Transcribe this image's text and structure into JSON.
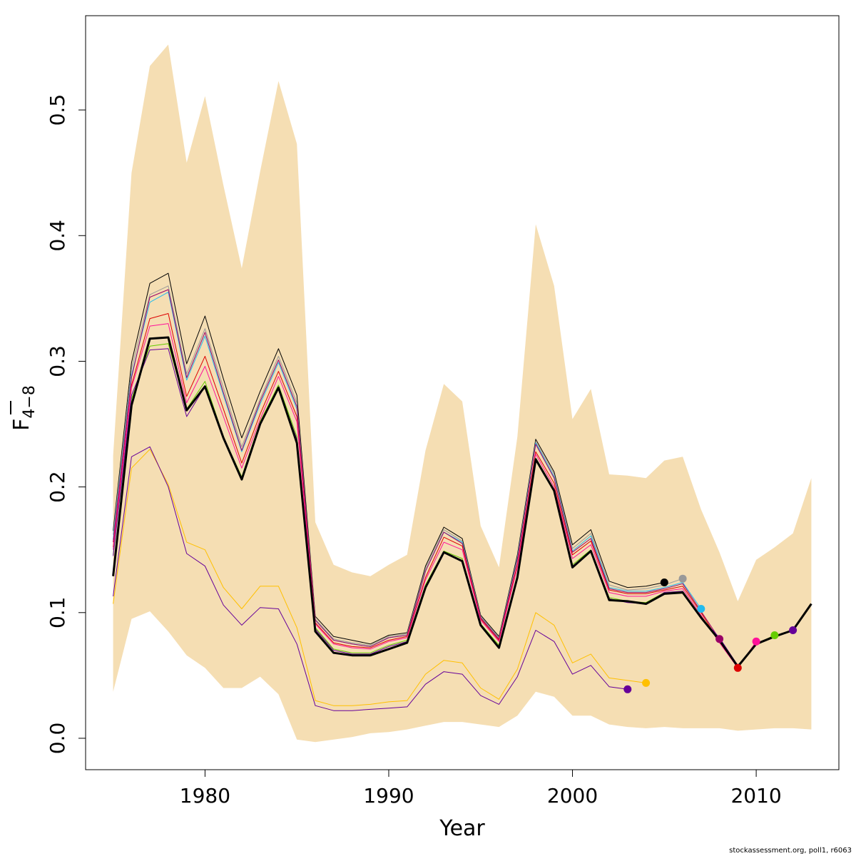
{
  "chart_data": {
    "type": "line",
    "xlabel": "Year",
    "ylabel_main": "F",
    "ylabel_sub": "4−8",
    "xlim": [
      1973.5,
      2014.5
    ],
    "ylim": [
      -0.025,
      0.575
    ],
    "xticks": [
      1980,
      1990,
      2000,
      2010
    ],
    "yticks": [
      0.0,
      0.1,
      0.2,
      0.3,
      0.4,
      0.5
    ],
    "ytick_labels": [
      "0.0",
      "0.1",
      "0.2",
      "0.3",
      "0.4",
      "0.5"
    ],
    "band_color": "#f5deb3",
    "band_x": [
      1975,
      1976,
      1977,
      1978,
      1979,
      1980,
      1981,
      1982,
      1983,
      1984,
      1985,
      1986,
      1987,
      1988,
      1989,
      1990,
      1991,
      1992,
      1993,
      1994,
      1995,
      1996,
      1997,
      1998,
      1999,
      2000,
      2001,
      2002,
      2003,
      2004,
      2005,
      2006,
      2007,
      2008,
      2009,
      2010,
      2011,
      2012,
      2013
    ],
    "band_upper": [
      0.225,
      0.45,
      0.535,
      0.552,
      0.458,
      0.511,
      0.44,
      0.374,
      0.451,
      0.523,
      0.473,
      0.172,
      0.138,
      0.132,
      0.129,
      0.138,
      0.146,
      0.229,
      0.282,
      0.268,
      0.169,
      0.136,
      0.24,
      0.409,
      0.36,
      0.254,
      0.278,
      0.21,
      0.209,
      0.207,
      0.221,
      0.224,
      0.182,
      0.148,
      0.109,
      0.142,
      0.152,
      0.163,
      0.207
    ],
    "band_lower": [
      0.037,
      0.095,
      0.101,
      0.085,
      0.066,
      0.056,
      0.04,
      0.04,
      0.049,
      0.035,
      -0.001,
      -0.003,
      -0.001,
      0.001,
      0.004,
      0.005,
      0.007,
      0.01,
      0.013,
      0.013,
      0.011,
      0.009,
      0.018,
      0.037,
      0.033,
      0.018,
      0.018,
      0.011,
      0.009,
      0.008,
      0.009,
      0.008,
      0.008,
      0.008,
      0.006,
      0.007,
      0.008,
      0.008,
      0.007
    ],
    "series": [
      {
        "color": "#000000",
        "width": 1,
        "end_dot": true,
        "x": [
          1975,
          1976,
          1977,
          1978,
          1979,
          1980,
          1981,
          1982,
          1983,
          1984,
          1985,
          1986,
          1987,
          1988,
          1989,
          1990,
          1991,
          1992,
          1993,
          1994,
          1995,
          1996,
          1997,
          1998,
          1999,
          2000,
          2001,
          2002,
          2003,
          2004,
          2005
        ],
        "y": [
          0.165,
          0.299,
          0.362,
          0.37,
          0.298,
          0.336,
          0.286,
          0.239,
          0.276,
          0.31,
          0.273,
          0.097,
          0.081,
          0.078,
          0.075,
          0.082,
          0.084,
          0.137,
          0.168,
          0.159,
          0.098,
          0.081,
          0.146,
          0.238,
          0.212,
          0.154,
          0.166,
          0.125,
          0.12,
          0.121,
          0.124
        ]
      },
      {
        "color": "#999999",
        "width": 1,
        "end_dot": true,
        "x": [
          1975,
          1976,
          1977,
          1978,
          1979,
          1980,
          1981,
          1982,
          1983,
          1984,
          1985,
          1986,
          1987,
          1988,
          1989,
          1990,
          1991,
          1992,
          1993,
          1994,
          1995,
          1996,
          1997,
          1998,
          1999,
          2000,
          2001,
          2002,
          2003,
          2004,
          2005,
          2006
        ],
        "y": [
          0.162,
          0.294,
          0.353,
          0.36,
          0.29,
          0.326,
          0.279,
          0.232,
          0.27,
          0.304,
          0.267,
          0.095,
          0.079,
          0.076,
          0.074,
          0.081,
          0.083,
          0.135,
          0.166,
          0.157,
          0.097,
          0.08,
          0.144,
          0.236,
          0.21,
          0.151,
          0.163,
          0.122,
          0.118,
          0.119,
          0.122,
          0.127
        ]
      },
      {
        "color": "#22bbee",
        "width": 1,
        "end_dot": true,
        "x": [
          1975,
          1976,
          1977,
          1978,
          1979,
          1980,
          1981,
          1982,
          1983,
          1984,
          1985,
          1986,
          1987,
          1988,
          1989,
          1990,
          1991,
          1992,
          1993,
          1994,
          1995,
          1996,
          1997,
          1998,
          1999,
          2000,
          2001,
          2002,
          2003,
          2004,
          2005,
          2006,
          2007
        ],
        "y": [
          0.158,
          0.289,
          0.347,
          0.355,
          0.285,
          0.32,
          0.273,
          0.228,
          0.266,
          0.299,
          0.262,
          0.094,
          0.078,
          0.075,
          0.073,
          0.08,
          0.082,
          0.133,
          0.164,
          0.156,
          0.096,
          0.079,
          0.143,
          0.235,
          0.208,
          0.149,
          0.161,
          0.12,
          0.117,
          0.117,
          0.12,
          0.124,
          0.103
        ]
      },
      {
        "color": "#990066",
        "width": 1,
        "end_dot": true,
        "x": [
          1975,
          1976,
          1977,
          1978,
          1979,
          1980,
          1981,
          1982,
          1983,
          1984,
          1985,
          1986,
          1987,
          1988,
          1989,
          1990,
          1991,
          1992,
          1993,
          1994,
          1995,
          1996,
          1997,
          1998,
          1999,
          2000,
          2001,
          2002,
          2003,
          2004,
          2005,
          2006,
          2007,
          2008
        ],
        "y": [
          0.156,
          0.287,
          0.351,
          0.357,
          0.287,
          0.323,
          0.275,
          0.229,
          0.268,
          0.301,
          0.264,
          0.094,
          0.078,
          0.075,
          0.073,
          0.08,
          0.082,
          0.133,
          0.164,
          0.155,
          0.096,
          0.079,
          0.142,
          0.234,
          0.207,
          0.148,
          0.159,
          0.119,
          0.116,
          0.116,
          0.119,
          0.123,
          0.101,
          0.079
        ]
      },
      {
        "color": "#dd0000",
        "width": 1,
        "end_dot": true,
        "x": [
          1975,
          1976,
          1977,
          1978,
          1979,
          1980,
          1981,
          1982,
          1983,
          1984,
          1985,
          1986,
          1987,
          1988,
          1989,
          1990,
          1991,
          1992,
          1993,
          1994,
          1995,
          1996,
          1997,
          1998,
          1999,
          2000,
          2001,
          2002,
          2003,
          2004,
          2005,
          2006,
          2007,
          2008,
          2009
        ],
        "y": [
          0.152,
          0.281,
          0.334,
          0.338,
          0.272,
          0.304,
          0.262,
          0.219,
          0.258,
          0.292,
          0.256,
          0.092,
          0.076,
          0.073,
          0.072,
          0.078,
          0.081,
          0.128,
          0.16,
          0.153,
          0.095,
          0.078,
          0.138,
          0.228,
          0.203,
          0.146,
          0.157,
          0.118,
          0.115,
          0.115,
          0.118,
          0.121,
          0.1,
          0.077,
          0.056
        ]
      },
      {
        "color": "#ff1199",
        "width": 1,
        "end_dot": true,
        "x": [
          1975,
          1976,
          1977,
          1978,
          1979,
          1980,
          1981,
          1982,
          1983,
          1984,
          1985,
          1986,
          1987,
          1988,
          1989,
          1990,
          1991,
          1992,
          1993,
          1994,
          1995,
          1996,
          1997,
          1998,
          1999,
          2000,
          2001,
          2002,
          2003,
          2004,
          2005,
          2006,
          2007,
          2008,
          2009,
          2010
        ],
        "y": [
          0.15,
          0.279,
          0.328,
          0.33,
          0.267,
          0.296,
          0.256,
          0.215,
          0.254,
          0.288,
          0.252,
          0.091,
          0.075,
          0.072,
          0.071,
          0.077,
          0.08,
          0.126,
          0.156,
          0.15,
          0.094,
          0.077,
          0.136,
          0.226,
          0.2,
          0.143,
          0.154,
          0.116,
          0.113,
          0.113,
          0.117,
          0.119,
          0.098,
          0.076,
          0.056,
          0.077
        ]
      },
      {
        "color": "#66cc00",
        "width": 1,
        "end_dot": true,
        "x": [
          1975,
          1976,
          1977,
          1978,
          1979,
          1980,
          1981,
          1982,
          1983,
          1984,
          1985,
          1986,
          1987,
          1988,
          1989,
          1990,
          1991,
          1992,
          1993,
          1994,
          1995,
          1996,
          1997,
          1998,
          1999,
          2000,
          2001,
          2002,
          2003,
          2004,
          2005,
          2006,
          2007,
          2008,
          2009,
          2010,
          2011
        ],
        "y": [
          0.146,
          0.27,
          0.312,
          0.314,
          0.262,
          0.284,
          0.24,
          0.208,
          0.252,
          0.281,
          0.24,
          0.088,
          0.071,
          0.068,
          0.068,
          0.074,
          0.078,
          0.122,
          0.149,
          0.143,
          0.091,
          0.074,
          0.13,
          0.223,
          0.198,
          0.138,
          0.15,
          0.112,
          0.109,
          0.108,
          0.116,
          0.117,
          0.097,
          0.079,
          0.058,
          0.075,
          0.082
        ]
      },
      {
        "color": "#660099",
        "width": 1,
        "end_dot": true,
        "x": [
          1975,
          1976,
          1977,
          1978,
          1979,
          1980,
          1981,
          1982,
          1983,
          1984,
          1985,
          1986,
          1987,
          1988,
          1989,
          1990,
          1991,
          1992,
          1993,
          1994,
          1995,
          1996,
          1997,
          1998,
          1999,
          2000,
          2001,
          2002,
          2003,
          2004,
          2005,
          2006,
          2007,
          2008,
          2009,
          2010,
          2011,
          2012
        ],
        "y": [
          0.145,
          0.273,
          0.309,
          0.31,
          0.256,
          0.28,
          0.238,
          0.207,
          0.251,
          0.279,
          0.238,
          0.087,
          0.07,
          0.067,
          0.067,
          0.073,
          0.077,
          0.12,
          0.148,
          0.141,
          0.09,
          0.073,
          0.129,
          0.222,
          0.197,
          0.137,
          0.149,
          0.111,
          0.108,
          0.107,
          0.116,
          0.117,
          0.096,
          0.08,
          0.058,
          0.075,
          0.081,
          0.086
        ]
      },
      {
        "color": "#ffc000",
        "width": 1,
        "end_dot": true,
        "x": [
          1975,
          1976,
          1977,
          1978,
          1979,
          1980,
          1981,
          1982,
          1983,
          1984,
          1985,
          1986,
          1987,
          1988,
          1989,
          1990,
          1991,
          1992,
          1993,
          1994,
          1995,
          1996,
          1997,
          1998,
          1999,
          2000,
          2001,
          2002,
          2003,
          2004
        ],
        "y": [
          0.107,
          0.215,
          0.23,
          0.202,
          0.156,
          0.15,
          0.12,
          0.103,
          0.121,
          0.121,
          0.088,
          0.03,
          0.026,
          0.026,
          0.027,
          0.029,
          0.03,
          0.051,
          0.062,
          0.06,
          0.04,
          0.031,
          0.055,
          0.1,
          0.09,
          0.06,
          0.067,
          0.048,
          0.046,
          0.044
        ]
      },
      {
        "color": "#660099",
        "width": 1,
        "end_dot": true,
        "x": [
          1975,
          1976,
          1977,
          1978,
          1979,
          1980,
          1981,
          1982,
          1983,
          1984,
          1985,
          1986,
          1987,
          1988,
          1989,
          1990,
          1991,
          1992,
          1993,
          1994,
          1995,
          1996,
          1997,
          1998,
          1999,
          2000,
          2001,
          2002,
          2003
        ],
        "y": [
          0.113,
          0.224,
          0.232,
          0.2,
          0.147,
          0.137,
          0.106,
          0.09,
          0.104,
          0.103,
          0.075,
          0.026,
          0.022,
          0.022,
          0.023,
          0.024,
          0.025,
          0.043,
          0.053,
          0.051,
          0.034,
          0.027,
          0.049,
          0.086,
          0.077,
          0.051,
          0.058,
          0.041,
          0.039
        ]
      },
      {
        "color": "#000000",
        "width": 3,
        "end_dot": false,
        "x": [
          1975,
          1976,
          1977,
          1978,
          1979,
          1980,
          1981,
          1982,
          1983,
          1984,
          1985,
          1986,
          1987,
          1988,
          1989,
          1990,
          1991,
          1992,
          1993,
          1994,
          1995,
          1996,
          1997,
          1998,
          1999,
          2000,
          2001,
          2002,
          2003,
          2004,
          2005,
          2006,
          2007,
          2008,
          2009,
          2010,
          2011,
          2012,
          2013
        ],
        "y": [
          0.129,
          0.265,
          0.318,
          0.319,
          0.261,
          0.28,
          0.239,
          0.206,
          0.25,
          0.279,
          0.235,
          0.085,
          0.068,
          0.066,
          0.066,
          0.071,
          0.076,
          0.12,
          0.148,
          0.141,
          0.09,
          0.072,
          0.128,
          0.222,
          0.197,
          0.136,
          0.149,
          0.11,
          0.109,
          0.107,
          0.115,
          0.116,
          0.096,
          0.078,
          0.057,
          0.075,
          0.081,
          0.086,
          0.107
        ]
      }
    ]
  },
  "footer": {
    "credit": "stockassessment.org, poll1, r6063"
  }
}
